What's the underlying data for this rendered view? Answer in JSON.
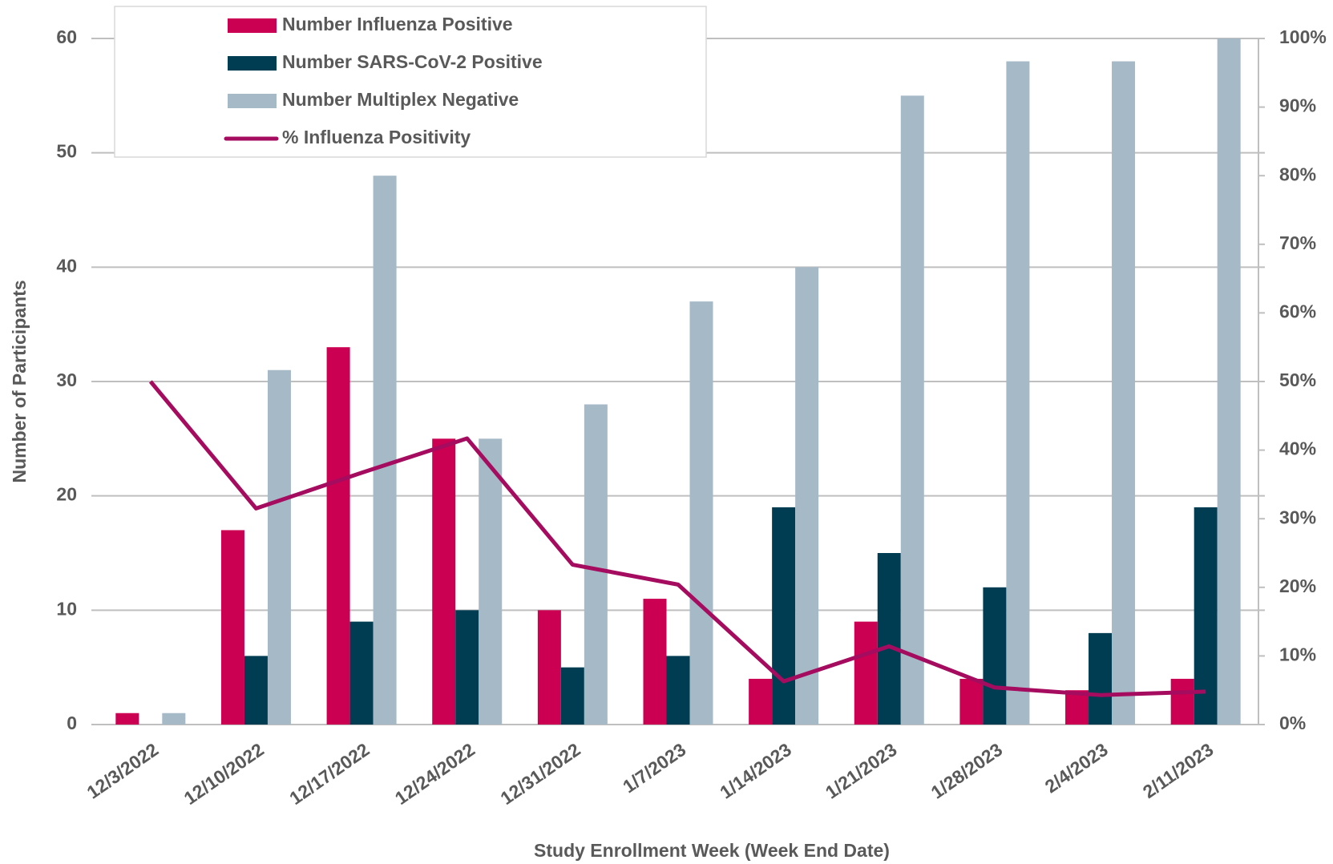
{
  "chart_data": {
    "type": "bar",
    "x_label": "Study Enrollment Week (Week End Date)",
    "y_label": "Number of Participants",
    "categories": [
      "12/3/2022",
      "12/10/2022",
      "12/17/2022",
      "12/24/2022",
      "12/31/2022",
      "1/7/2023",
      "1/14/2023",
      "1/21/2023",
      "1/28/2023",
      "2/4/2023",
      "2/11/2023"
    ],
    "series": [
      {
        "name": "Number Influenza Positive",
        "color": "#cc0052",
        "values": [
          1,
          17,
          33,
          25,
          10,
          11,
          4,
          9,
          4,
          3,
          4
        ]
      },
      {
        "name": "Number SARS-CoV-2 Positive",
        "color": "#003d52",
        "values": [
          0,
          6,
          9,
          10,
          5,
          6,
          19,
          15,
          12,
          8,
          19
        ]
      },
      {
        "name": "Number Multiplex Negative",
        "color": "#a6b9c7",
        "values": [
          1,
          31,
          48,
          25,
          28,
          37,
          40,
          55,
          58,
          58,
          60
        ]
      },
      {
        "name": "% Influenza Positivity",
        "color": "#a50b5e",
        "type": "line",
        "axis": "y2",
        "values": [
          50,
          31.5,
          36.7,
          41.7,
          23.3,
          20.4,
          6.3,
          11.4,
          5.4,
          4.3,
          4.8
        ]
      }
    ],
    "ylim": [
      0,
      60
    ],
    "yticks": [
      0,
      10,
      20,
      30,
      40,
      50,
      60
    ],
    "y2lim": [
      0,
      100
    ],
    "y2ticks": [
      {
        "value": 0,
        "label": "0%"
      },
      {
        "value": 10,
        "label": "10%"
      },
      {
        "value": 20,
        "label": "20%"
      },
      {
        "value": 30,
        "label": "30%"
      },
      {
        "value": 40,
        "label": "40%"
      },
      {
        "value": 50,
        "label": "50%"
      },
      {
        "value": 60,
        "label": "60%"
      },
      {
        "value": 70,
        "label": "70%"
      },
      {
        "value": 80,
        "label": "80%"
      },
      {
        "value": 90,
        "label": "90%"
      },
      {
        "value": 100,
        "label": "100%"
      }
    ],
    "grid": true
  }
}
